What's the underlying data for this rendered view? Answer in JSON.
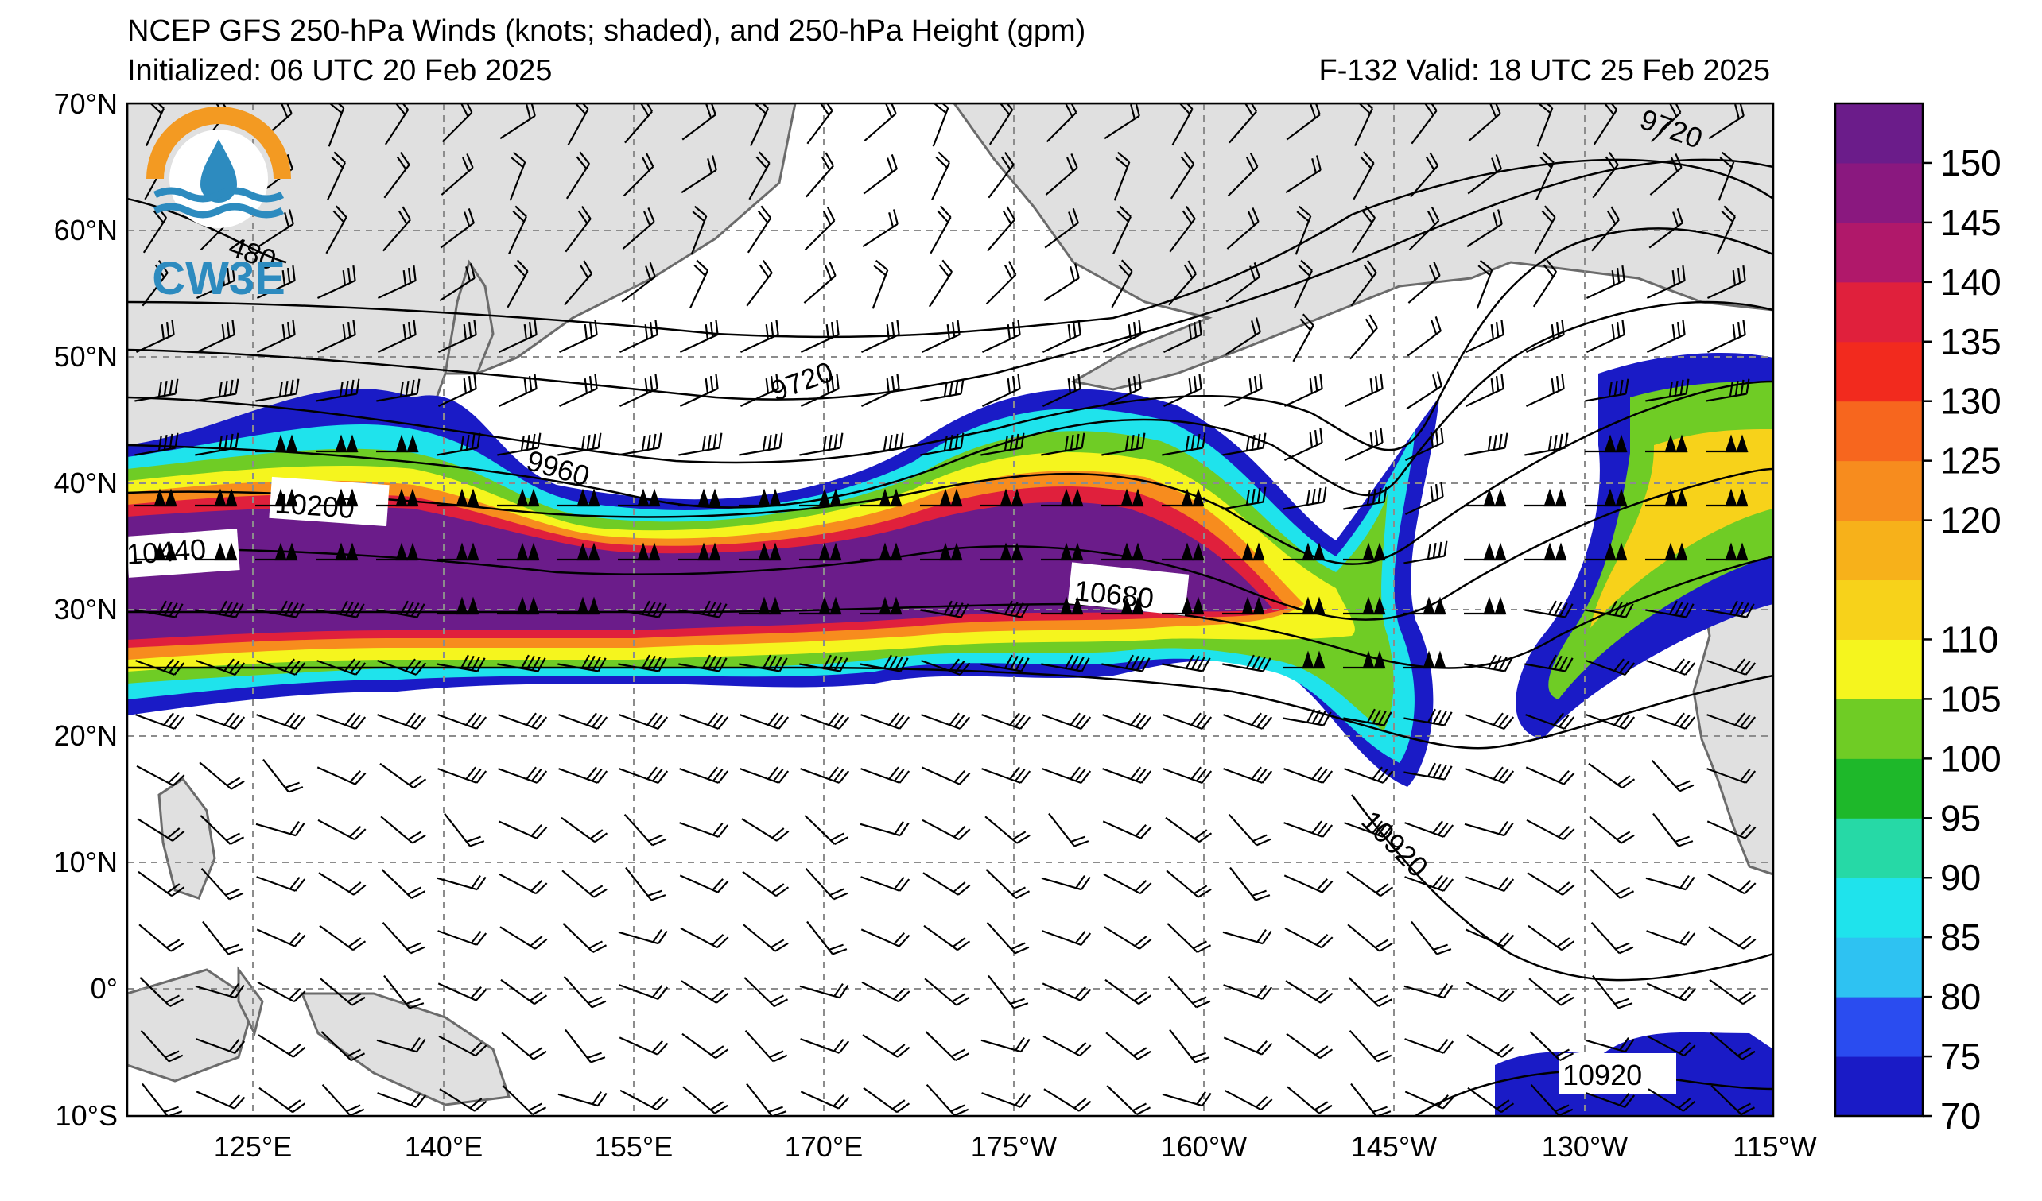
{
  "header": {
    "title": "NCEP GFS 250-hPa Winds (knots; shaded), and 250-hPa Height (gpm)",
    "initialized": "Initialized: 06 UTC 20 Feb 2025",
    "valid": "F-132  Valid: 18 UTC 25 Feb 2025"
  },
  "logo": {
    "text": "CW3E",
    "colors": {
      "orange": "#f39a22",
      "blue": "#2d8bbf"
    }
  },
  "axes": {
    "lat_labels": [
      "70°N",
      "60°N",
      "50°N",
      "40°N",
      "30°N",
      "20°N",
      "10°N",
      "0°",
      "10°S"
    ],
    "lon_labels": [
      "125°E",
      "140°E",
      "155°E",
      "170°E",
      "175°W",
      "160°W",
      "145°W",
      "130°W",
      "115°W"
    ]
  },
  "colorbar": {
    "ticks": [
      "70",
      "75",
      "80",
      "85",
      "90",
      "95",
      "100",
      "105",
      "110",
      "120",
      "125",
      "130",
      "135",
      "140",
      "145",
      "150"
    ],
    "colors": [
      "#1a1bc6",
      "#2a4cf0",
      "#2ec2f2",
      "#1fe3ec",
      "#26d9a6",
      "#1eb82a",
      "#6fcc25",
      "#f5f51e",
      "#f7d21a",
      "#f7b11a",
      "#f78c1e",
      "#f7661e",
      "#f22a1e",
      "#e0203c",
      "#b0186a",
      "#8a187f",
      "#6b1c8a"
    ],
    "levels": [
      70,
      75,
      80,
      85,
      90,
      95,
      100,
      105,
      110,
      115,
      120,
      125,
      130,
      135,
      140,
      145,
      150,
      155
    ]
  },
  "contours": {
    "labels": [
      "9720",
      "9720",
      "9960",
      "10200",
      "10440",
      "10680",
      "10920",
      "10920",
      "480"
    ]
  },
  "colors": {
    "land": "#e0e0e0",
    "coast": "#6b6b6b",
    "grid": "#8c8c8c"
  }
}
